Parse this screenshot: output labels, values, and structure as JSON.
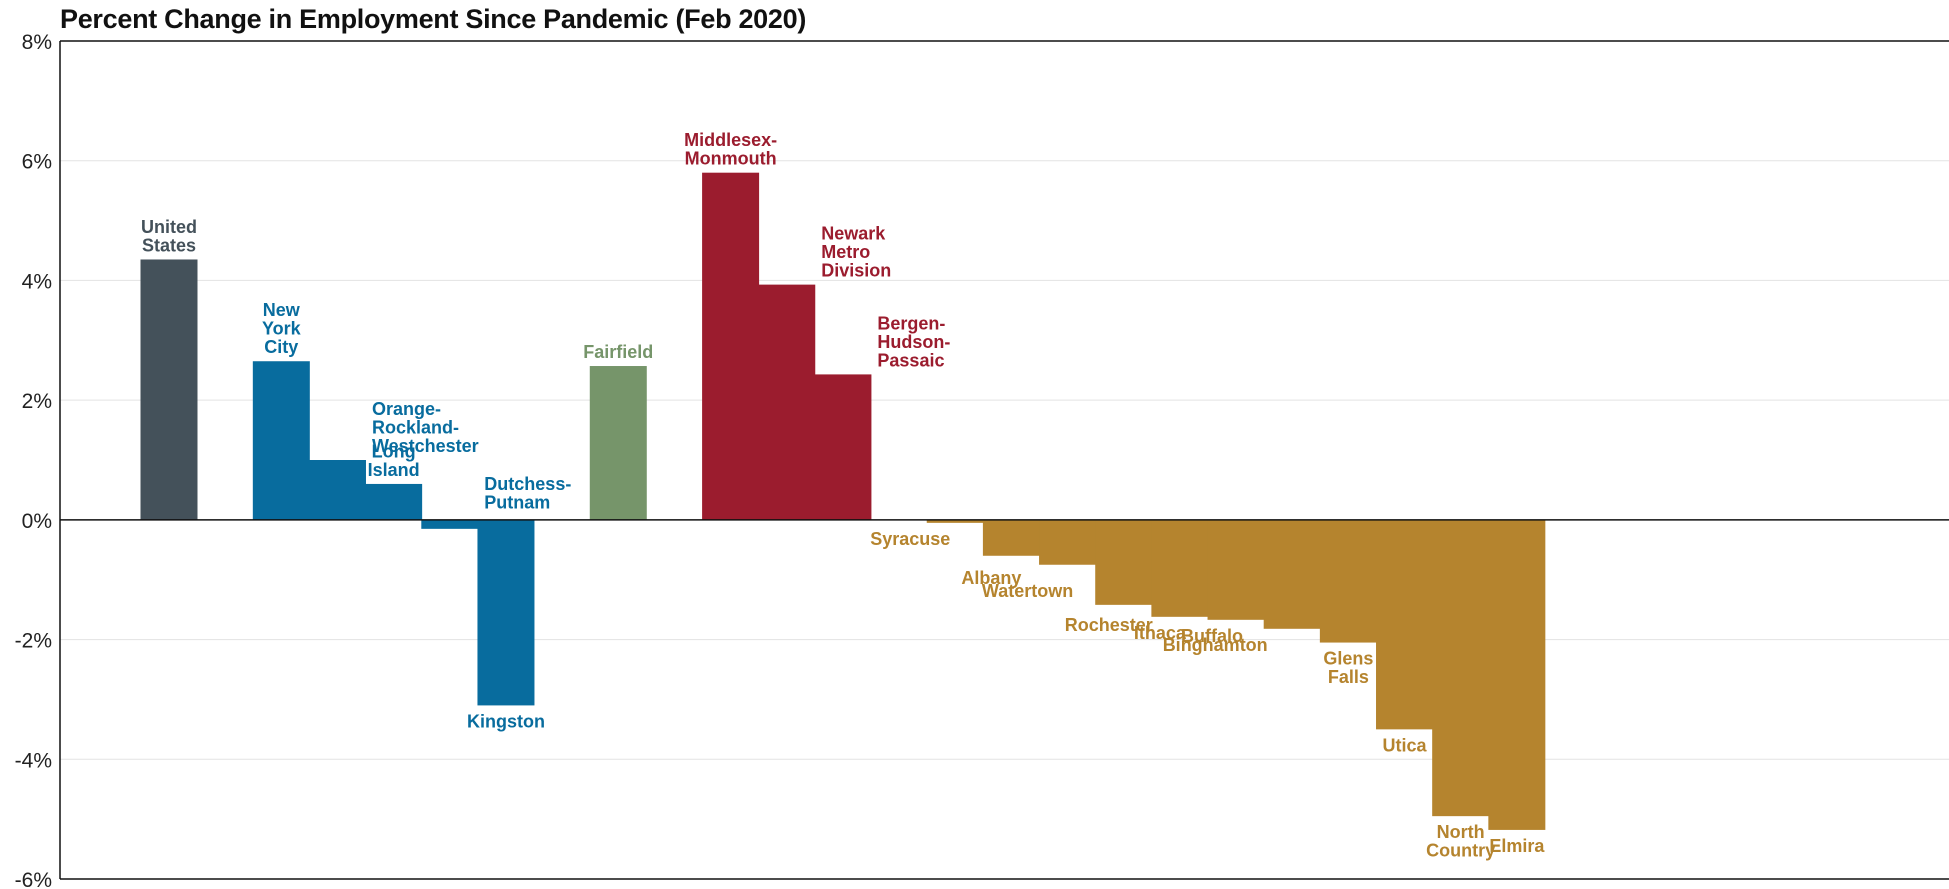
{
  "chart_data": {
    "type": "bar",
    "title": "Percent Change in Employment Since Pandemic (Feb 2020)",
    "xlabel": "",
    "ylabel": "",
    "ylim": [
      -6,
      8
    ],
    "yticks": [
      8,
      6,
      4,
      2,
      0,
      -2,
      -4,
      -6
    ],
    "ytick_labels": [
      "8%",
      "6%",
      "4%",
      "2%",
      "0%",
      "-2%",
      "-4%",
      "-6%"
    ],
    "grid": "horizontal",
    "legend": "none",
    "groups": [
      {
        "color": "#44515a"
      },
      {
        "color": "#086c9e"
      },
      {
        "color": "#76956a"
      },
      {
        "color": "#9b1c2e"
      },
      {
        "color": "#b5842e"
      }
    ],
    "bars": [
      {
        "label": "United States",
        "label_lines": [
          "United",
          "States"
        ],
        "value": 4.35,
        "group": 0
      },
      {
        "label": "New York City",
        "label_lines": [
          "New",
          "York",
          "City"
        ],
        "value": 2.65,
        "group": 1
      },
      {
        "label": "Orange-Rockland-Westchester",
        "label_lines": [
          "Orange-",
          "Rockland-",
          "Westchester"
        ],
        "value": 1.0,
        "group": 1
      },
      {
        "label": "Long Island",
        "label_lines": [
          "Long",
          "Island"
        ],
        "value": 0.6,
        "group": 1
      },
      {
        "label": "Dutchess-Putnam",
        "label_lines": [
          "Dutchess-",
          "Putnam"
        ],
        "value": -0.15,
        "group": 1
      },
      {
        "label": "Kingston",
        "label_lines": [
          "Kingston"
        ],
        "value": -3.1,
        "group": 1
      },
      {
        "label": "Fairfield",
        "label_lines": [
          "Fairfield"
        ],
        "value": 2.57,
        "group": 2
      },
      {
        "label": "Middlesex-Monmouth",
        "label_lines": [
          "Middlesex-",
          "Monmouth"
        ],
        "value": 5.8,
        "group": 3
      },
      {
        "label": "Newark Metro Division",
        "label_lines": [
          "Newark",
          "Metro",
          "Division"
        ],
        "value": 3.93,
        "group": 3
      },
      {
        "label": "Bergen-Hudson-Passaic",
        "label_lines": [
          "Bergen-",
          "Hudson-",
          "Passaic"
        ],
        "value": 2.43,
        "group": 3
      },
      {
        "label": "Syracuse",
        "label_lines": [
          "Syracuse"
        ],
        "value": -0.05,
        "group": 4
      },
      {
        "label": "Albany",
        "label_lines": [
          "Albany"
        ],
        "value": -0.6,
        "group": 4
      },
      {
        "label": "Watertown",
        "label_lines": [
          "Watertown"
        ],
        "value": -0.75,
        "group": 4
      },
      {
        "label": "Rochester",
        "label_lines": [
          "Rochester"
        ],
        "value": -1.42,
        "group": 4
      },
      {
        "label": "Ithaca",
        "label_lines": [
          "Ithaca"
        ],
        "value": -1.62,
        "group": 4
      },
      {
        "label": "Buffalo",
        "label_lines": [
          "Buffalo"
        ],
        "value": -1.67,
        "group": 4
      },
      {
        "label": "Binghamton",
        "label_lines": [
          "Binghamton"
        ],
        "value": -1.82,
        "group": 4
      },
      {
        "label": "Glens Falls",
        "label_lines": [
          "Glens",
          "Falls"
        ],
        "value": -2.05,
        "group": 4
      },
      {
        "label": "Utica",
        "label_lines": [
          "Utica"
        ],
        "value": -3.5,
        "group": 4
      },
      {
        "label": "North Country",
        "label_lines": [
          "North",
          "Country"
        ],
        "value": -4.95,
        "group": 4
      },
      {
        "label": "Elmira",
        "label_lines": [
          "Elmira"
        ],
        "value": -5.18,
        "group": 4
      }
    ]
  }
}
